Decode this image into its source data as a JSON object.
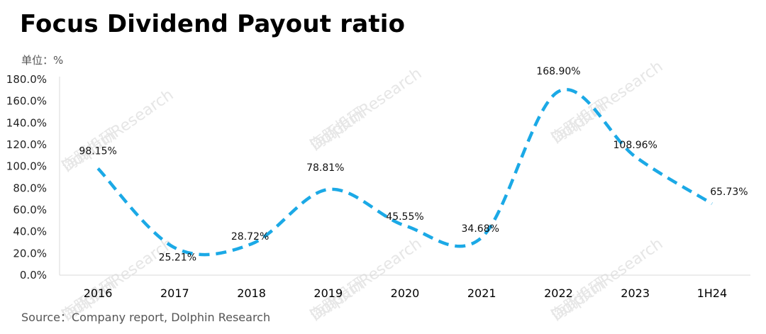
{
  "chart_data": {
    "type": "line",
    "title": "Focus Dividend Payout ratio",
    "unit_label": "单位：%",
    "source": "Source：Company report, Dolphin Research",
    "categories": [
      "2016",
      "2017",
      "2018",
      "2019",
      "2020",
      "2021",
      "2022",
      "2023",
      "1H24"
    ],
    "series": [
      {
        "values": [
          98.15,
          25.21,
          28.72,
          78.81,
          45.55,
          34.68,
          168.9,
          108.96,
          65.73
        ],
        "labels": [
          "98.15%",
          "25.21%",
          "28.72%",
          "78.81%",
          "45.55%",
          "34.68%",
          "168.90%",
          "108.96%",
          "65.73%"
        ],
        "color": "#1BA9E6",
        "line_style": "dashed",
        "smooth": true
      }
    ],
    "ylim": [
      0,
      180
    ],
    "y_ticks": [
      "0.0%",
      "20.0%",
      "40.0%",
      "60.0%",
      "80.0%",
      "100.0%",
      "120.0%",
      "140.0%",
      "160.0%",
      "180.0%"
    ],
    "grid": false,
    "legend": "none"
  },
  "watermark": [
    "海豚投研",
    "DolphinResearch"
  ]
}
